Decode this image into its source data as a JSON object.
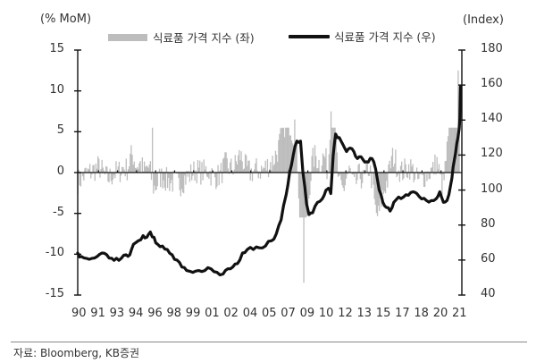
{
  "chart_data": {
    "type": "bar+line",
    "title": "",
    "left_axis": {
      "label": "(% MoM)",
      "ticks": [
        15,
        10,
        5,
        0,
        -5,
        -10,
        -15
      ],
      "range": [
        -15,
        15
      ]
    },
    "right_axis": {
      "label": "(Index)",
      "ticks": [
        180,
        160,
        140,
        120,
        100,
        80,
        60,
        40
      ],
      "range": [
        40,
        180
      ]
    },
    "x_tick_labels": [
      "90",
      "91",
      "93",
      "94",
      "96",
      "98",
      "99",
      "01",
      "02",
      "04",
      "05",
      "07",
      "09",
      "10",
      "12",
      "13",
      "15",
      "17",
      "18",
      "20",
      "21"
    ],
    "x_range": [
      1990,
      2021.5
    ],
    "legend": [
      {
        "name": "식료품 가격 지수 (좌)",
        "type": "bar",
        "color": "#bdbdbd",
        "axis": "left"
      },
      {
        "name": "식료품 가격 지수 (우)",
        "type": "line",
        "color": "#111111",
        "axis": "right"
      }
    ],
    "series": [
      {
        "name": "식료품 가격 지수 (우)",
        "axis": "right",
        "points": [
          [
            1990.0,
            64
          ],
          [
            1990.3,
            62
          ],
          [
            1990.7,
            61
          ],
          [
            1991.2,
            61
          ],
          [
            1991.6,
            62
          ],
          [
            1992.0,
            64
          ],
          [
            1992.4,
            63
          ],
          [
            1992.8,
            61
          ],
          [
            1993.2,
            61
          ],
          [
            1993.6,
            61
          ],
          [
            1994.0,
            63
          ],
          [
            1994.3,
            63
          ],
          [
            1994.6,
            69
          ],
          [
            1995.0,
            71
          ],
          [
            1995.4,
            74
          ],
          [
            1995.7,
            73
          ],
          [
            1996.0,
            76
          ],
          [
            1996.3,
            73
          ],
          [
            1996.6,
            69
          ],
          [
            1997.0,
            68
          ],
          [
            1997.4,
            66
          ],
          [
            1997.8,
            63
          ],
          [
            1998.2,
            60
          ],
          [
            1998.6,
            56
          ],
          [
            1999.0,
            54
          ],
          [
            1999.5,
            53
          ],
          [
            2000.0,
            54
          ],
          [
            2000.5,
            54
          ],
          [
            2001.0,
            55
          ],
          [
            2001.5,
            53
          ],
          [
            2002.0,
            52
          ],
          [
            2002.4,
            55
          ],
          [
            2002.8,
            56
          ],
          [
            2003.2,
            58
          ],
          [
            2003.6,
            64
          ],
          [
            2004.0,
            66
          ],
          [
            2004.5,
            66
          ],
          [
            2005.0,
            67
          ],
          [
            2005.5,
            68
          ],
          [
            2006.0,
            71
          ],
          [
            2006.4,
            75
          ],
          [
            2006.8,
            83
          ],
          [
            2007.2,
            97
          ],
          [
            2007.5,
            110
          ],
          [
            2007.8,
            120
          ],
          [
            2008.1,
            128
          ],
          [
            2008.4,
            128
          ],
          [
            2008.6,
            110
          ],
          [
            2008.9,
            92
          ],
          [
            2009.1,
            86
          ],
          [
            2009.4,
            87
          ],
          [
            2009.8,
            93
          ],
          [
            2010.2,
            95
          ],
          [
            2010.5,
            100
          ],
          [
            2010.7,
            101
          ],
          [
            2010.9,
            98
          ],
          [
            2011.1,
            120
          ],
          [
            2011.3,
            132
          ],
          [
            2011.6,
            130
          ],
          [
            2011.9,
            126
          ],
          [
            2012.2,
            122
          ],
          [
            2012.5,
            124
          ],
          [
            2012.8,
            122
          ],
          [
            2013.1,
            118
          ],
          [
            2013.4,
            119
          ],
          [
            2013.7,
            116
          ],
          [
            2014.0,
            116
          ],
          [
            2014.3,
            118
          ],
          [
            2014.6,
            112
          ],
          [
            2014.9,
            100
          ],
          [
            2015.2,
            93
          ],
          [
            2015.5,
            90
          ],
          [
            2015.8,
            88
          ],
          [
            2016.1,
            93
          ],
          [
            2016.5,
            96
          ],
          [
            2016.9,
            96
          ],
          [
            2017.3,
            97
          ],
          [
            2017.7,
            99
          ],
          [
            2018.0,
            98
          ],
          [
            2018.4,
            95
          ],
          [
            2018.8,
            94
          ],
          [
            2019.2,
            94
          ],
          [
            2019.6,
            95
          ],
          [
            2019.9,
            99
          ],
          [
            2020.2,
            93
          ],
          [
            2020.5,
            94
          ],
          [
            2020.8,
            103
          ],
          [
            2021.0,
            113
          ],
          [
            2021.2,
            121
          ],
          [
            2021.4,
            130
          ],
          [
            2021.5,
            135
          ],
          [
            2021.55,
            140
          ],
          [
            2021.6,
            159
          ]
        ]
      },
      {
        "name": "식료품 가격 지수 (좌)",
        "axis": "left",
        "notable_values": [
          {
            "x": 2008.7,
            "value": -13.5
          },
          {
            "x": 2021.45,
            "value": 12.5
          },
          {
            "x": 2010.9,
            "value": 7.5
          },
          {
            "x": 2007.9,
            "value": 6.5
          },
          {
            "x": 1996.2,
            "value": 5.5
          }
        ],
        "typical_range": [
          -6,
          6
        ]
      }
    ],
    "grid": false
  },
  "labels": {
    "left_unit": "(% MoM)",
    "right_unit": "(Index)",
    "legend_bar": "식료품 가격 지수 (좌)",
    "legend_line": "식료품 가격 지수 (우)",
    "source": "자료: Bloomberg, KB증권"
  }
}
